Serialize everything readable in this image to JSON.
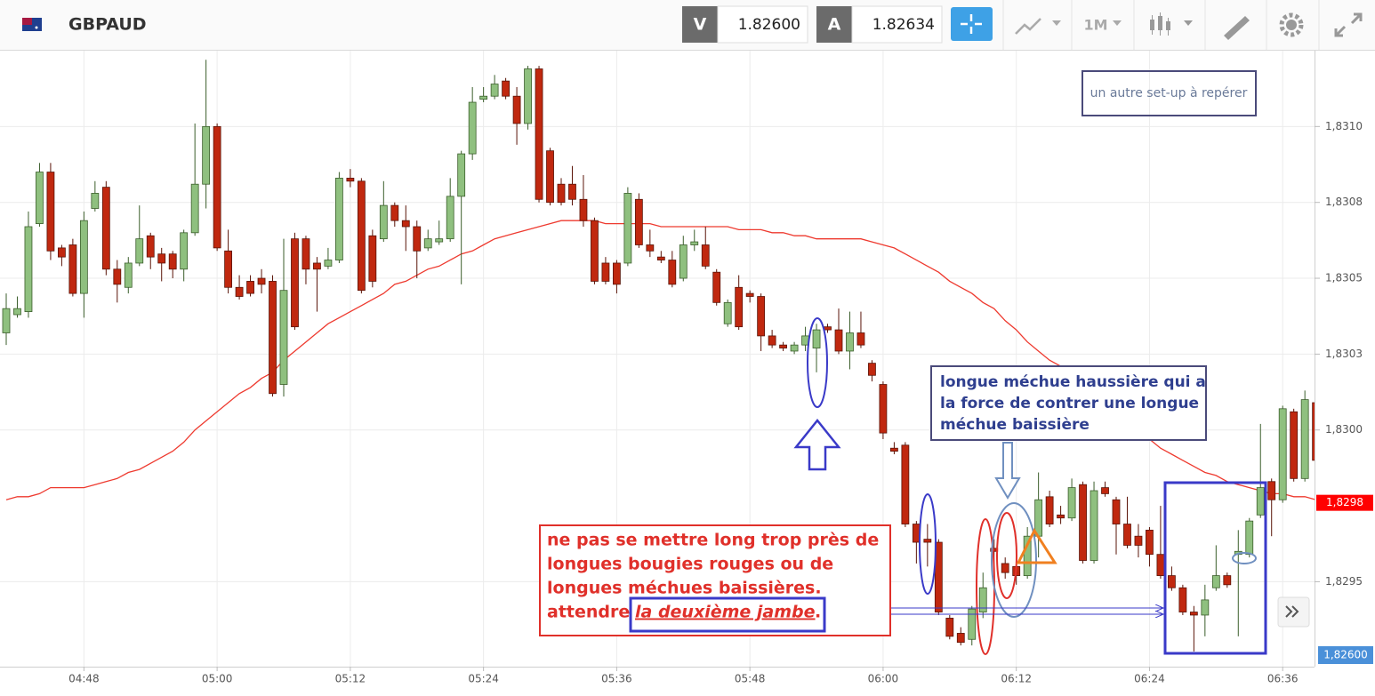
{
  "toolbar": {
    "symbol": "GBPAUD",
    "sell_label": "V",
    "sell_price": "1.82600",
    "buy_label": "A",
    "buy_price": "1.82634",
    "timeframe": "1M"
  },
  "chart_data": {
    "type": "candlestick",
    "ylim": [
      1.82922,
      1.83125
    ],
    "yticks": [
      {
        "value": 1.831,
        "label": "1,8310"
      },
      {
        "value": 1.83075,
        "label": "1,8308"
      },
      {
        "value": 1.8305,
        "label": "1,8305"
      },
      {
        "value": 1.83025,
        "label": "1,8303"
      },
      {
        "value": 1.83,
        "label": "1,8300"
      },
      {
        "value": 1.8295,
        "label": "1,8295"
      }
    ],
    "grid": true,
    "up_color": "#8fc07f",
    "down_color": "#c0280f",
    "categories": [
      null,
      null,
      null,
      null,
      null,
      null,
      null,
      "04:48",
      null,
      null,
      null,
      null,
      null,
      null,
      null,
      null,
      null,
      null,
      null,
      "05:00",
      null,
      null,
      null,
      null,
      null,
      null,
      null,
      null,
      null,
      null,
      null,
      "05:12",
      null,
      null,
      null,
      null,
      null,
      null,
      null,
      null,
      null,
      null,
      null,
      "05:24",
      null,
      null,
      null,
      null,
      null,
      null,
      null,
      null,
      null,
      null,
      null,
      "05:36",
      null,
      null,
      null,
      null,
      null,
      null,
      null,
      null,
      null,
      null,
      null,
      "05:48",
      null,
      null,
      null,
      null,
      null,
      null,
      null,
      null,
      null,
      null,
      null,
      "06:00",
      null,
      null,
      null,
      null,
      null,
      null,
      null,
      null,
      null,
      null,
      null,
      "06:12",
      null,
      null,
      null,
      null,
      null,
      null,
      null,
      null,
      null,
      null,
      null,
      "06:24",
      null,
      null,
      null,
      null,
      null,
      null,
      null,
      null,
      null,
      null,
      null,
      "06:36",
      null,
      null,
      null
    ],
    "open": [
      1.83032,
      1.83038,
      1.83039,
      1.83068,
      1.83085,
      1.8306,
      1.83061,
      1.83045,
      1.83073,
      1.8308,
      1.83053,
      1.83047,
      1.83055,
      1.83064,
      1.83058,
      1.83058,
      1.83053,
      1.83065,
      1.83081,
      1.831,
      1.83059,
      1.83047,
      1.83049,
      1.8305,
      1.83049,
      1.83015,
      1.83063,
      1.83063,
      1.83055,
      1.83054,
      1.83056,
      1.83083,
      1.83082,
      1.83064,
      1.83063,
      1.83074,
      1.83069,
      1.83067,
      1.8306,
      1.83062,
      1.83063,
      1.83077,
      1.83091,
      1.83109,
      1.8311,
      1.83115,
      1.8311,
      1.83101,
      1.83119,
      1.83092,
      1.83081,
      1.83081,
      1.83076,
      1.83069,
      1.83055,
      1.83055,
      1.83055,
      1.83076,
      1.83061,
      1.83057,
      1.83056,
      1.8305,
      1.83061,
      1.83061,
      1.83052,
      1.83035,
      1.83047,
      1.83045,
      1.83044,
      1.83031,
      1.83028,
      1.83026,
      1.83028,
      1.83027,
      1.83034,
      1.83033,
      1.83026,
      1.83032,
      1.83022,
      1.83015,
      1.82994,
      1.82995,
      1.82969,
      1.82964,
      1.82963,
      1.82938,
      1.82933,
      1.82931,
      1.8294,
      1.82961,
      1.82956,
      1.82955,
      1.82952,
      1.82965,
      1.82978,
      1.82972,
      1.82971,
      1.82982,
      1.82957,
      1.82981,
      1.82977,
      1.82969,
      1.82965,
      1.82967,
      1.82959,
      1.82952,
      1.82948,
      1.8294,
      1.82939,
      1.82948,
      1.82952,
      1.82959,
      1.82959,
      1.82972,
      1.82983,
      1.82977,
      1.83006,
      1.82984,
      1.83009
    ],
    "high": [
      1.83045,
      1.83044,
      1.83072,
      1.83088,
      1.83088,
      1.83061,
      1.83063,
      1.83072,
      1.83082,
      1.83082,
      1.83056,
      1.83057,
      1.83074,
      1.83065,
      1.8306,
      1.83059,
      1.83066,
      1.83101,
      1.83122,
      1.83101,
      1.83066,
      1.83051,
      1.83051,
      1.83053,
      1.83051,
      1.83063,
      1.83065,
      1.83064,
      1.83057,
      1.8306,
      1.83085,
      1.83086,
      1.83083,
      1.83066,
      1.83082,
      1.83075,
      1.83074,
      1.83069,
      1.83066,
      1.83069,
      1.83083,
      1.83092,
      1.83113,
      1.83113,
      1.83117,
      1.83116,
      1.83113,
      1.8312,
      1.8312,
      1.83093,
      1.83083,
      1.83087,
      1.83084,
      1.8307,
      1.83057,
      1.83056,
      1.8308,
      1.83078,
      1.83066,
      1.83059,
      1.83059,
      1.83064,
      1.83066,
      1.83067,
      1.83053,
      1.83043,
      1.83051,
      1.83046,
      1.83045,
      1.83033,
      1.83029,
      1.83029,
      1.83034,
      1.83035,
      1.83035,
      1.8304,
      1.83039,
      1.83039,
      1.83023,
      1.83016,
      1.82996,
      1.82996,
      1.8297,
      1.82969,
      1.82964,
      1.82939,
      1.82935,
      1.82942,
      1.82953,
      1.82964,
      1.82958,
      1.82959,
      1.82968,
      1.82986,
      1.8298,
      1.82975,
      1.82984,
      1.82983,
      1.82983,
      1.82983,
      1.82978,
      1.82978,
      1.82969,
      1.82968,
      1.82975,
      1.82955,
      1.82949,
      1.82942,
      1.82949,
      1.82962,
      1.82953,
      1.82967,
      1.82971,
      1.83002,
      1.82984,
      1.83008,
      1.83007,
      1.83013,
      1.8301
    ],
    "low": [
      1.83028,
      1.83037,
      1.83037,
      1.83067,
      1.83056,
      1.83054,
      1.83044,
      1.83037,
      1.83072,
      1.83051,
      1.83042,
      1.83045,
      1.83054,
      1.83053,
      1.83049,
      1.8305,
      1.83049,
      1.83064,
      1.83073,
      1.83059,
      1.83045,
      1.83043,
      1.83044,
      1.83045,
      1.83011,
      1.83011,
      1.83033,
      1.83048,
      1.83039,
      1.83053,
      1.83055,
      1.8308,
      1.83045,
      1.83047,
      1.83062,
      1.83067,
      1.83059,
      1.8305,
      1.83059,
      1.83061,
      1.83062,
      1.83048,
      1.83089,
      1.83108,
      1.83109,
      1.83109,
      1.83094,
      1.83099,
      1.83075,
      1.83074,
      1.83074,
      1.83074,
      1.83067,
      1.83048,
      1.83048,
      1.83045,
      1.83054,
      1.8306,
      1.83057,
      1.83055,
      1.83047,
      1.83049,
      1.83059,
      1.83053,
      1.83041,
      1.83034,
      1.83033,
      1.83042,
      1.83026,
      1.83027,
      1.83026,
      1.83025,
      1.83026,
      1.83019,
      1.83032,
      1.83025,
      1.8302,
      1.83027,
      1.83016,
      1.82997,
      1.82992,
      1.82968,
      1.82956,
      1.82955,
      1.82939,
      1.82931,
      1.82929,
      1.82929,
      1.82938,
      1.82955,
      1.82951,
      1.82949,
      1.82951,
      1.82958,
      1.82968,
      1.82969,
      1.8297,
      1.82956,
      1.82956,
      1.82978,
      1.82959,
      1.82961,
      1.82958,
      1.82955,
      1.82951,
      1.82947,
      1.82939,
      1.82927,
      1.82932,
      1.82947,
      1.82948,
      1.82932,
      1.82958,
      1.82971,
      1.82965,
      1.82976,
      1.82983,
      1.82983,
      1.82989
    ],
    "close": [
      1.8304,
      1.8304,
      1.83067,
      1.83085,
      1.83059,
      1.83057,
      1.83045,
      1.83069,
      1.83078,
      1.83053,
      1.83048,
      1.83055,
      1.83063,
      1.83057,
      1.83055,
      1.83053,
      1.83065,
      1.83081,
      1.831,
      1.8306,
      1.83047,
      1.83044,
      1.83045,
      1.83048,
      1.83012,
      1.83046,
      1.83034,
      1.83053,
      1.83053,
      1.83056,
      1.83083,
      1.83082,
      1.83046,
      1.83049,
      1.83074,
      1.83069,
      1.83067,
      1.83059,
      1.83063,
      1.83063,
      1.83077,
      1.83091,
      1.83108,
      1.8311,
      1.83114,
      1.8311,
      1.83101,
      1.83119,
      1.83076,
      1.83075,
      1.83075,
      1.83076,
      1.83069,
      1.83049,
      1.83049,
      1.83048,
      1.83078,
      1.83061,
      1.83059,
      1.83056,
      1.83048,
      1.83061,
      1.83062,
      1.83054,
      1.83042,
      1.83042,
      1.83034,
      1.83044,
      1.83031,
      1.83028,
      1.83027,
      1.83028,
      1.83031,
      1.83033,
      1.83033,
      1.83026,
      1.83032,
      1.83028,
      1.83018,
      1.82999,
      1.82993,
      1.82969,
      1.82963,
      1.82963,
      1.8294,
      1.82932,
      1.8293,
      1.82941,
      1.82948,
      1.8296,
      1.82953,
      1.82952,
      1.82965,
      1.82977,
      1.82969,
      1.82971,
      1.82981,
      1.82957,
      1.8298,
      1.82979,
      1.82969,
      1.82962,
      1.82962,
      1.82959,
      1.82952,
      1.82948,
      1.8294,
      1.82939,
      1.82944,
      1.82952,
      1.82949,
      1.8296,
      1.8297,
      1.82981,
      1.82977,
      1.83007,
      1.82984,
      1.8301,
      1.8299
    ],
    "moving_average": {
      "color": "#ee3a2f",
      "values": [
        1.82977,
        1.82978,
        1.82978,
        1.82979,
        1.82981,
        1.82981,
        1.82981,
        1.82981,
        1.82982,
        1.82983,
        1.82984,
        1.82986,
        1.82987,
        1.82989,
        1.82991,
        1.82993,
        1.82996,
        1.83,
        1.83003,
        1.83006,
        1.83009,
        1.83012,
        1.83014,
        1.83017,
        1.83019,
        1.83023,
        1.83026,
        1.83029,
        1.83032,
        1.83035,
        1.83037,
        1.83039,
        1.83041,
        1.83043,
        1.83045,
        1.83048,
        1.83049,
        1.83051,
        1.83053,
        1.83054,
        1.83056,
        1.83058,
        1.83059,
        1.83061,
        1.83063,
        1.83064,
        1.83065,
        1.83066,
        1.83067,
        1.83068,
        1.83069,
        1.83069,
        1.83069,
        1.83069,
        1.83068,
        1.83068,
        1.83068,
        1.83068,
        1.83068,
        1.83067,
        1.83067,
        1.83067,
        1.83067,
        1.83067,
        1.83067,
        1.83067,
        1.83066,
        1.83066,
        1.83066,
        1.83065,
        1.83065,
        1.83064,
        1.83064,
        1.83063,
        1.83063,
        1.83063,
        1.83063,
        1.83063,
        1.83062,
        1.83061,
        1.8306,
        1.83058,
        1.83056,
        1.83054,
        1.83052,
        1.83049,
        1.83047,
        1.83045,
        1.83042,
        1.8304,
        1.83036,
        1.83033,
        1.83029,
        1.83026,
        1.83023,
        1.83021,
        1.83018,
        1.83015,
        1.83012,
        1.83009,
        1.83006,
        1.83003,
        1.83,
        1.82997,
        1.82994,
        1.82992,
        1.8299,
        1.82988,
        1.82986,
        1.82985,
        1.82983,
        1.82982,
        1.82981,
        1.8298,
        1.82979,
        1.82979,
        1.82978,
        1.82978,
        1.82977
      ]
    },
    "price_marker": {
      "value": 1.82976,
      "label": "1,8298",
      "color": "#ff0000"
    },
    "bid_marker_label": "1,82600",
    "annotations": {
      "setup_note": "un autre set-up à repérer",
      "wick_note": [
        "longue méchue haussière qui a",
        "la force de contrer une longue",
        "méchue baissière"
      ],
      "warning": [
        "ne pas se mettre long trop près de",
        "longues bougies rouges ou de",
        "longues méchues baissières.",
        "attendre"
      ],
      "warning_emphasis": "la deuxième jambe",
      "warning_end": "."
    }
  }
}
